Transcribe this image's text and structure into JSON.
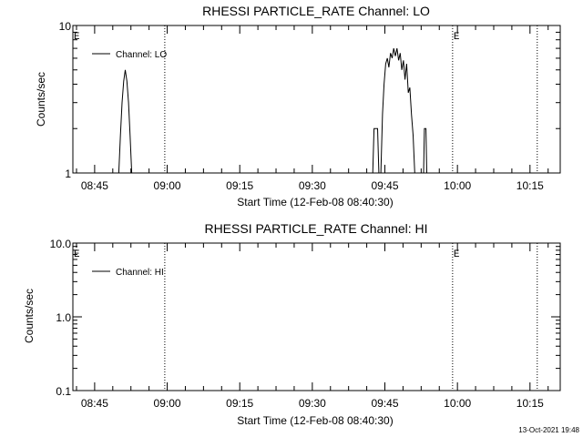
{
  "footer_timestamp": "13-Oct-2021 19:48",
  "chart_data": [
    {
      "type": "line",
      "title": "RHESSI PARTICLE_RATE Channel: LO",
      "xlabel": "Start Time (12-Feb-08 08:40:30)",
      "ylabel": "Counts/sec",
      "yscale": "log",
      "ylim": [
        1,
        10
      ],
      "ytick_values": [
        1,
        10
      ],
      "ytick_labels": [
        "1",
        "10"
      ],
      "xlim": [
        "08:40:30",
        "10:21:15"
      ],
      "xtick_labels": [
        "08:45",
        "09:00",
        "09:15",
        "09:30",
        "09:45",
        "10:00",
        "10:15"
      ],
      "xtick_values": [
        "08:45",
        "09:00",
        "09:15",
        "09:30",
        "09:45",
        "10:00",
        "10:15"
      ],
      "x_minor_ticks_per_major": 3,
      "grid": false,
      "legend_position": "top-left",
      "vertical_markers": [
        {
          "time": "08:40:30",
          "label": "E"
        },
        {
          "time": "08:59:30",
          "label": ""
        },
        {
          "time": "09:59:00",
          "label": "E"
        },
        {
          "time": "10:16:30",
          "label": ""
        }
      ],
      "series": [
        {
          "name": "Channel: LO",
          "points": [
            [
              "08:50:00",
              1.0
            ],
            [
              "08:50:20",
              1.8
            ],
            [
              "08:50:40",
              3.0
            ],
            [
              "08:51:00",
              4.2
            ],
            [
              "08:51:20",
              5.0
            ],
            [
              "08:51:40",
              4.2
            ],
            [
              "08:52:00",
              3.0
            ],
            [
              "08:52:20",
              1.8
            ],
            [
              "08:52:40",
              1.0
            ],
            [
              "09:42:30",
              1.0
            ],
            [
              "09:42:45",
              2.0
            ],
            [
              "09:43:30",
              2.0
            ],
            [
              "09:43:45",
              1.0
            ],
            [
              "09:44:10",
              1.0
            ],
            [
              "09:44:30",
              2.5
            ],
            [
              "09:44:50",
              4.0
            ],
            [
              "09:45:10",
              5.5
            ],
            [
              "09:45:30",
              6.0
            ],
            [
              "09:45:50",
              5.2
            ],
            [
              "09:46:10",
              6.5
            ],
            [
              "09:46:30",
              6.0
            ],
            [
              "09:46:50",
              7.0
            ],
            [
              "09:47:10",
              6.2
            ],
            [
              "09:47:30",
              7.0
            ],
            [
              "09:47:50",
              5.8
            ],
            [
              "09:48:10",
              6.5
            ],
            [
              "09:48:30",
              5.0
            ],
            [
              "09:48:50",
              5.8
            ],
            [
              "09:49:10",
              4.3
            ],
            [
              "09:49:30",
              5.5
            ],
            [
              "09:49:50",
              3.5
            ],
            [
              "09:50:10",
              3.8
            ],
            [
              "09:50:30",
              2.5
            ],
            [
              "09:50:50",
              1.8
            ],
            [
              "09:51:10",
              1.0
            ],
            [
              "09:53:00",
              1.0
            ],
            [
              "09:53:10",
              2.0
            ],
            [
              "09:53:30",
              2.0
            ],
            [
              "09:53:40",
              1.0
            ]
          ]
        }
      ]
    },
    {
      "type": "line",
      "title": "RHESSI PARTICLE_RATE Channel: HI",
      "xlabel": "Start Time (12-Feb-08 08:40:30)",
      "ylabel": "Counts/sec",
      "yscale": "log",
      "ylim": [
        0.1,
        10
      ],
      "ytick_values": [
        0.1,
        1,
        10
      ],
      "ytick_labels": [
        "0.1",
        "1.0",
        "10.0"
      ],
      "xlim": [
        "08:40:30",
        "10:21:15"
      ],
      "xtick_labels": [
        "08:45",
        "09:00",
        "09:15",
        "09:30",
        "09:45",
        "10:00",
        "10:15"
      ],
      "xtick_values": [
        "08:45",
        "09:00",
        "09:15",
        "09:30",
        "09:45",
        "10:00",
        "10:15"
      ],
      "x_minor_ticks_per_major": 3,
      "grid": false,
      "legend_position": "top-left",
      "vertical_markers": [
        {
          "time": "08:40:30",
          "label": "E"
        },
        {
          "time": "08:59:30",
          "label": ""
        },
        {
          "time": "09:59:00",
          "label": "E"
        },
        {
          "time": "10:16:30",
          "label": ""
        }
      ],
      "series": [
        {
          "name": "Channel: HI",
          "points": []
        }
      ]
    }
  ]
}
